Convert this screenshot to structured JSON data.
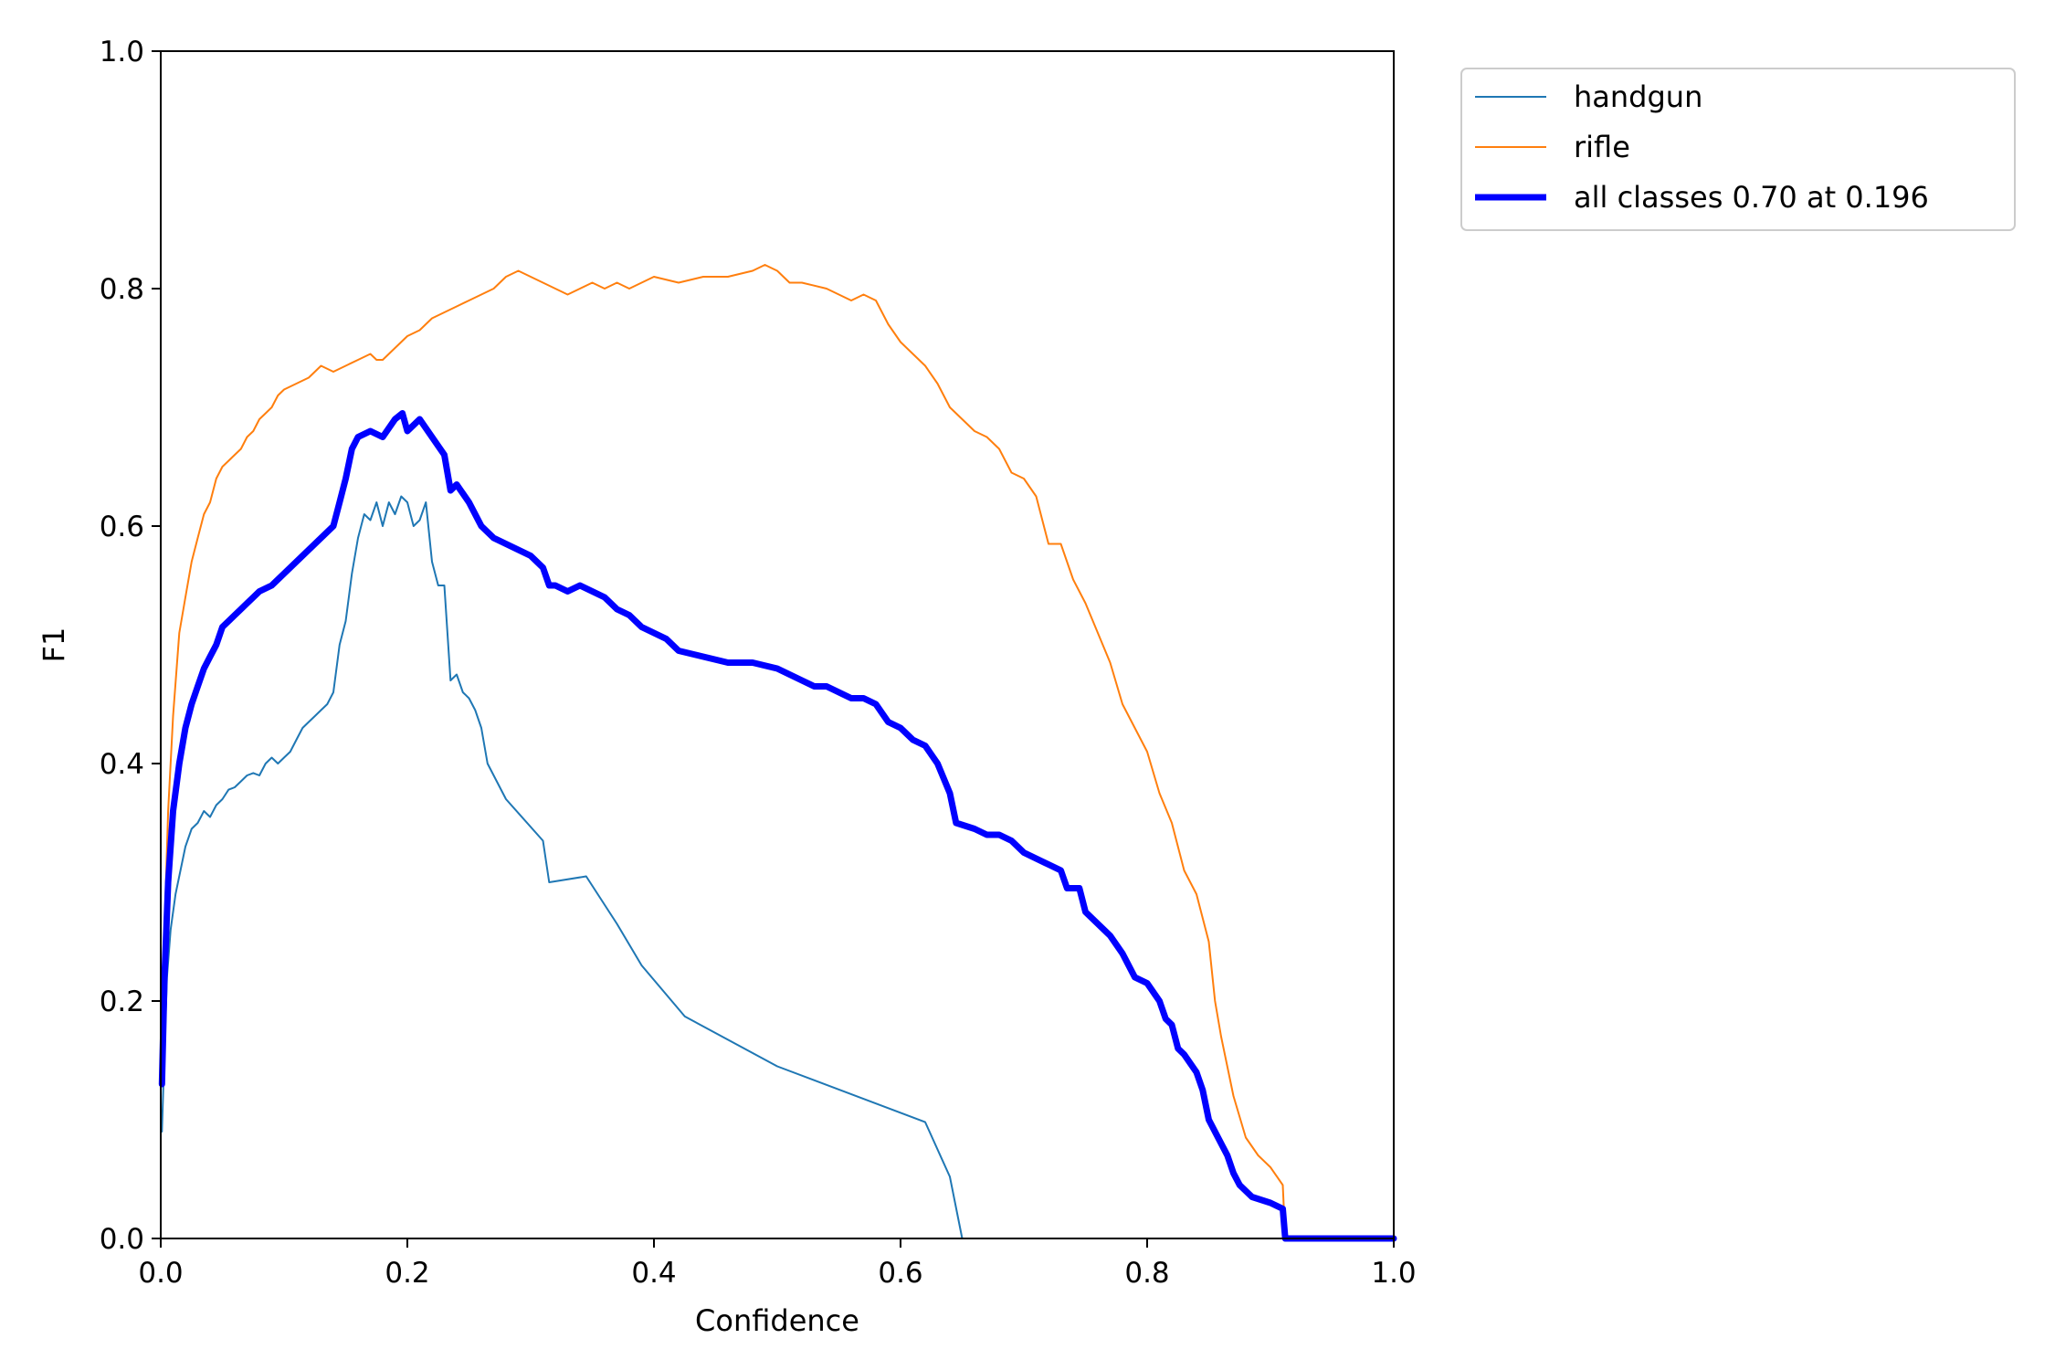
{
  "chart_data": {
    "type": "line",
    "title": "",
    "xlabel": "Confidence",
    "ylabel": "F1",
    "xlim": [
      0,
      1
    ],
    "ylim": [
      0,
      1
    ],
    "xticks": [
      "0.0",
      "0.2",
      "0.4",
      "0.6",
      "0.8",
      "1.0"
    ],
    "yticks": [
      "0.0",
      "0.2",
      "0.4",
      "0.6",
      "0.8",
      "1.0"
    ],
    "grid": false,
    "legend_position": "outside-top-right",
    "series": [
      {
        "name": "handgun",
        "color": "#1f77b4",
        "points": [
          [
            0.001,
            0.09
          ],
          [
            0.003,
            0.16
          ],
          [
            0.005,
            0.22
          ],
          [
            0.008,
            0.26
          ],
          [
            0.012,
            0.29
          ],
          [
            0.016,
            0.31
          ],
          [
            0.02,
            0.33
          ],
          [
            0.025,
            0.345
          ],
          [
            0.03,
            0.35
          ],
          [
            0.035,
            0.36
          ],
          [
            0.04,
            0.355
          ],
          [
            0.045,
            0.365
          ],
          [
            0.05,
            0.37
          ],
          [
            0.055,
            0.378
          ],
          [
            0.06,
            0.38
          ],
          [
            0.065,
            0.385
          ],
          [
            0.07,
            0.39
          ],
          [
            0.075,
            0.392
          ],
          [
            0.08,
            0.39
          ],
          [
            0.085,
            0.4
          ],
          [
            0.09,
            0.405
          ],
          [
            0.095,
            0.4
          ],
          [
            0.1,
            0.405
          ],
          [
            0.105,
            0.41
          ],
          [
            0.11,
            0.42
          ],
          [
            0.115,
            0.43
          ],
          [
            0.12,
            0.435
          ],
          [
            0.125,
            0.44
          ],
          [
            0.13,
            0.445
          ],
          [
            0.135,
            0.45
          ],
          [
            0.14,
            0.46
          ],
          [
            0.145,
            0.5
          ],
          [
            0.15,
            0.52
          ],
          [
            0.155,
            0.56
          ],
          [
            0.16,
            0.59
          ],
          [
            0.165,
            0.61
          ],
          [
            0.17,
            0.605
          ],
          [
            0.175,
            0.62
          ],
          [
            0.18,
            0.6
          ],
          [
            0.185,
            0.62
          ],
          [
            0.19,
            0.61
          ],
          [
            0.195,
            0.625
          ],
          [
            0.2,
            0.62
          ],
          [
            0.205,
            0.6
          ],
          [
            0.21,
            0.605
          ],
          [
            0.215,
            0.62
          ],
          [
            0.22,
            0.57
          ],
          [
            0.225,
            0.55
          ],
          [
            0.23,
            0.55
          ],
          [
            0.235,
            0.47
          ],
          [
            0.24,
            0.475
          ],
          [
            0.245,
            0.46
          ],
          [
            0.25,
            0.455
          ],
          [
            0.255,
            0.445
          ],
          [
            0.26,
            0.43
          ],
          [
            0.265,
            0.4
          ],
          [
            0.28,
            0.37
          ],
          [
            0.31,
            0.335
          ],
          [
            0.315,
            0.3
          ],
          [
            0.345,
            0.305
          ],
          [
            0.37,
            0.265
          ],
          [
            0.39,
            0.23
          ],
          [
            0.425,
            0.187
          ],
          [
            0.5,
            0.145
          ],
          [
            0.62,
            0.098
          ],
          [
            0.64,
            0.052
          ],
          [
            0.65,
            0.0
          ],
          [
            0.7,
            0.0
          ],
          [
            0.8,
            0.0
          ],
          [
            0.9,
            0.0
          ],
          [
            1.0,
            0.0
          ]
        ]
      },
      {
        "name": "rifle",
        "color": "#ff7f0e",
        "points": [
          [
            0.001,
            0.13
          ],
          [
            0.003,
            0.26
          ],
          [
            0.006,
            0.36
          ],
          [
            0.01,
            0.44
          ],
          [
            0.015,
            0.51
          ],
          [
            0.02,
            0.54
          ],
          [
            0.025,
            0.57
          ],
          [
            0.03,
            0.59
          ],
          [
            0.035,
            0.61
          ],
          [
            0.04,
            0.62
          ],
          [
            0.045,
            0.64
          ],
          [
            0.05,
            0.65
          ],
          [
            0.055,
            0.655
          ],
          [
            0.06,
            0.66
          ],
          [
            0.065,
            0.665
          ],
          [
            0.07,
            0.675
          ],
          [
            0.075,
            0.68
          ],
          [
            0.08,
            0.69
          ],
          [
            0.085,
            0.695
          ],
          [
            0.09,
            0.7
          ],
          [
            0.095,
            0.71
          ],
          [
            0.1,
            0.715
          ],
          [
            0.11,
            0.72
          ],
          [
            0.12,
            0.725
          ],
          [
            0.13,
            0.735
          ],
          [
            0.14,
            0.73
          ],
          [
            0.15,
            0.735
          ],
          [
            0.16,
            0.74
          ],
          [
            0.17,
            0.745
          ],
          [
            0.175,
            0.74
          ],
          [
            0.18,
            0.74
          ],
          [
            0.19,
            0.75
          ],
          [
            0.2,
            0.76
          ],
          [
            0.21,
            0.765
          ],
          [
            0.22,
            0.775
          ],
          [
            0.23,
            0.78
          ],
          [
            0.24,
            0.785
          ],
          [
            0.25,
            0.79
          ],
          [
            0.26,
            0.795
          ],
          [
            0.27,
            0.8
          ],
          [
            0.28,
            0.81
          ],
          [
            0.29,
            0.815
          ],
          [
            0.3,
            0.81
          ],
          [
            0.31,
            0.805
          ],
          [
            0.32,
            0.8
          ],
          [
            0.33,
            0.795
          ],
          [
            0.34,
            0.8
          ],
          [
            0.35,
            0.805
          ],
          [
            0.36,
            0.8
          ],
          [
            0.37,
            0.805
          ],
          [
            0.38,
            0.8
          ],
          [
            0.39,
            0.805
          ],
          [
            0.4,
            0.81
          ],
          [
            0.42,
            0.805
          ],
          [
            0.44,
            0.81
          ],
          [
            0.46,
            0.81
          ],
          [
            0.48,
            0.815
          ],
          [
            0.49,
            0.82
          ],
          [
            0.5,
            0.815
          ],
          [
            0.51,
            0.805
          ],
          [
            0.52,
            0.805
          ],
          [
            0.54,
            0.8
          ],
          [
            0.55,
            0.795
          ],
          [
            0.56,
            0.79
          ],
          [
            0.57,
            0.795
          ],
          [
            0.58,
            0.79
          ],
          [
            0.59,
            0.77
          ],
          [
            0.6,
            0.755
          ],
          [
            0.61,
            0.745
          ],
          [
            0.62,
            0.735
          ],
          [
            0.63,
            0.72
          ],
          [
            0.64,
            0.7
          ],
          [
            0.65,
            0.69
          ],
          [
            0.66,
            0.68
          ],
          [
            0.67,
            0.675
          ],
          [
            0.68,
            0.665
          ],
          [
            0.69,
            0.645
          ],
          [
            0.7,
            0.64
          ],
          [
            0.71,
            0.625
          ],
          [
            0.72,
            0.585
          ],
          [
            0.73,
            0.585
          ],
          [
            0.74,
            0.555
          ],
          [
            0.75,
            0.535
          ],
          [
            0.76,
            0.51
          ],
          [
            0.77,
            0.485
          ],
          [
            0.78,
            0.45
          ],
          [
            0.79,
            0.43
          ],
          [
            0.8,
            0.41
          ],
          [
            0.81,
            0.375
          ],
          [
            0.82,
            0.35
          ],
          [
            0.83,
            0.31
          ],
          [
            0.84,
            0.29
          ],
          [
            0.85,
            0.25
          ],
          [
            0.855,
            0.2
          ],
          [
            0.86,
            0.17
          ],
          [
            0.87,
            0.12
          ],
          [
            0.88,
            0.085
          ],
          [
            0.89,
            0.07
          ],
          [
            0.9,
            0.06
          ],
          [
            0.91,
            0.045
          ],
          [
            0.912,
            0.0
          ],
          [
            0.95,
            0.0
          ],
          [
            1.0,
            0.0
          ]
        ]
      },
      {
        "name": "all classes 0.70 at 0.196",
        "color": "#0000ff",
        "points": [
          [
            0.001,
            0.13
          ],
          [
            0.003,
            0.22
          ],
          [
            0.006,
            0.3
          ],
          [
            0.01,
            0.36
          ],
          [
            0.015,
            0.4
          ],
          [
            0.02,
            0.43
          ],
          [
            0.025,
            0.45
          ],
          [
            0.03,
            0.465
          ],
          [
            0.035,
            0.48
          ],
          [
            0.04,
            0.49
          ],
          [
            0.045,
            0.5
          ],
          [
            0.05,
            0.515
          ],
          [
            0.055,
            0.52
          ],
          [
            0.06,
            0.525
          ],
          [
            0.065,
            0.53
          ],
          [
            0.07,
            0.535
          ],
          [
            0.075,
            0.54
          ],
          [
            0.08,
            0.545
          ],
          [
            0.09,
            0.55
          ],
          [
            0.1,
            0.56
          ],
          [
            0.11,
            0.57
          ],
          [
            0.12,
            0.58
          ],
          [
            0.13,
            0.59
          ],
          [
            0.14,
            0.6
          ],
          [
            0.145,
            0.62
          ],
          [
            0.15,
            0.64
          ],
          [
            0.155,
            0.665
          ],
          [
            0.16,
            0.675
          ],
          [
            0.17,
            0.68
          ],
          [
            0.18,
            0.675
          ],
          [
            0.19,
            0.69
          ],
          [
            0.196,
            0.695
          ],
          [
            0.2,
            0.68
          ],
          [
            0.21,
            0.69
          ],
          [
            0.22,
            0.675
          ],
          [
            0.23,
            0.66
          ],
          [
            0.235,
            0.63
          ],
          [
            0.24,
            0.635
          ],
          [
            0.25,
            0.62
          ],
          [
            0.26,
            0.6
          ],
          [
            0.27,
            0.59
          ],
          [
            0.28,
            0.585
          ],
          [
            0.29,
            0.58
          ],
          [
            0.3,
            0.575
          ],
          [
            0.31,
            0.565
          ],
          [
            0.315,
            0.55
          ],
          [
            0.32,
            0.55
          ],
          [
            0.33,
            0.545
          ],
          [
            0.34,
            0.55
          ],
          [
            0.35,
            0.545
          ],
          [
            0.36,
            0.54
          ],
          [
            0.37,
            0.53
          ],
          [
            0.38,
            0.525
          ],
          [
            0.39,
            0.515
          ],
          [
            0.4,
            0.51
          ],
          [
            0.41,
            0.505
          ],
          [
            0.42,
            0.495
          ],
          [
            0.44,
            0.49
          ],
          [
            0.46,
            0.485
          ],
          [
            0.48,
            0.485
          ],
          [
            0.5,
            0.48
          ],
          [
            0.51,
            0.475
          ],
          [
            0.52,
            0.47
          ],
          [
            0.53,
            0.465
          ],
          [
            0.54,
            0.465
          ],
          [
            0.55,
            0.46
          ],
          [
            0.56,
            0.455
          ],
          [
            0.57,
            0.455
          ],
          [
            0.58,
            0.45
          ],
          [
            0.59,
            0.435
          ],
          [
            0.6,
            0.43
          ],
          [
            0.61,
            0.42
          ],
          [
            0.62,
            0.415
          ],
          [
            0.63,
            0.4
          ],
          [
            0.64,
            0.375
          ],
          [
            0.645,
            0.35
          ],
          [
            0.66,
            0.345
          ],
          [
            0.67,
            0.34
          ],
          [
            0.68,
            0.34
          ],
          [
            0.69,
            0.335
          ],
          [
            0.7,
            0.325
          ],
          [
            0.72,
            0.315
          ],
          [
            0.73,
            0.31
          ],
          [
            0.735,
            0.295
          ],
          [
            0.745,
            0.295
          ],
          [
            0.75,
            0.275
          ],
          [
            0.76,
            0.265
          ],
          [
            0.77,
            0.255
          ],
          [
            0.78,
            0.24
          ],
          [
            0.79,
            0.22
          ],
          [
            0.8,
            0.215
          ],
          [
            0.81,
            0.2
          ],
          [
            0.815,
            0.185
          ],
          [
            0.82,
            0.18
          ],
          [
            0.825,
            0.16
          ],
          [
            0.83,
            0.155
          ],
          [
            0.84,
            0.14
          ],
          [
            0.845,
            0.125
          ],
          [
            0.85,
            0.1
          ],
          [
            0.86,
            0.08
          ],
          [
            0.865,
            0.07
          ],
          [
            0.87,
            0.055
          ],
          [
            0.875,
            0.045
          ],
          [
            0.885,
            0.035
          ],
          [
            0.9,
            0.03
          ],
          [
            0.91,
            0.025
          ],
          [
            0.912,
            0.0
          ],
          [
            0.95,
            0.0
          ],
          [
            1.0,
            0.0
          ]
        ]
      }
    ]
  }
}
